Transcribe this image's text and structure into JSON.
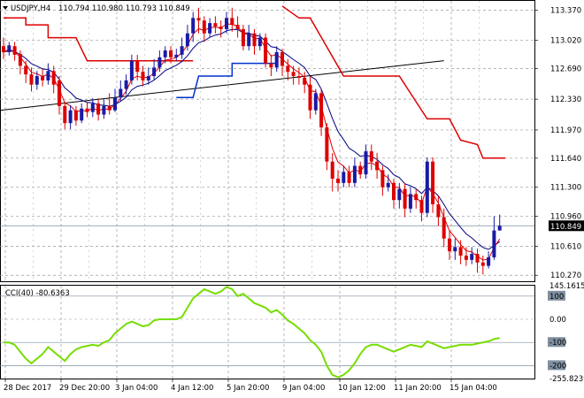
{
  "header": {
    "symbol": "USDJPY,H4",
    "ohlc": "110.794 110.980 110.793 110.849"
  },
  "indicator": {
    "label": "CCI(40) -80.6363",
    "value": -80.6363
  },
  "price_axis": {
    "labels": [
      "113.370",
      "113.020",
      "112.690",
      "112.330",
      "111.970",
      "111.640",
      "111.300",
      "110.960",
      "110.610",
      "110.270"
    ],
    "current": "110.849"
  },
  "cci_axis": {
    "labels": [
      "145.1615",
      "100",
      "0.00",
      "-100",
      "-200",
      "-255.8239"
    ],
    "boxed": [
      "100",
      "-100",
      "-200"
    ]
  },
  "time_axis": {
    "labels": [
      "28 Dec 2017",
      "29 Dec 20:00",
      "3 Jan 04:00",
      "4 Jan 12:00",
      "5 Jan 20:00",
      "9 Jan 04:00",
      "10 Jan 12:00",
      "11 Jan 20:00",
      "15 Jan 04:00"
    ]
  },
  "colors": {
    "bull": "#1a1aa6",
    "bear": "#dd0000",
    "fast_ma": "#dd0000",
    "slow_ma": "#000080",
    "stop_bear": "#dd0000",
    "stop_bull": "#0033cc",
    "trend": "#000000",
    "cci": "#77dd00",
    "grid": "#9a9a9a"
  },
  "chart_data": {
    "type": "candlestick",
    "price_range": [
      110.2,
      113.48
    ],
    "cci_range": [
      -255.8239,
      145.1615
    ],
    "candles": [
      [
        112.95,
        112.88,
        113.05,
        112.8
      ],
      [
        112.88,
        112.96,
        113.0,
        112.84
      ],
      [
        112.95,
        112.85,
        113.0,
        112.78
      ],
      [
        112.86,
        112.72,
        112.9,
        112.62
      ],
      [
        112.72,
        112.62,
        112.78,
        112.52
      ],
      [
        112.62,
        112.5,
        112.7,
        112.42
      ],
      [
        112.5,
        112.6,
        112.66,
        112.44
      ],
      [
        112.6,
        112.55,
        112.68,
        112.48
      ],
      [
        112.55,
        112.66,
        112.75,
        112.5
      ],
      [
        112.66,
        112.5,
        112.72,
        112.4
      ],
      [
        112.55,
        112.25,
        112.6,
        112.15
      ],
      [
        112.25,
        112.05,
        112.3,
        111.98
      ],
      [
        112.05,
        112.2,
        112.26,
        111.98
      ],
      [
        112.2,
        112.08,
        112.25,
        112.02
      ],
      [
        112.08,
        112.22,
        112.28,
        112.05
      ],
      [
        112.22,
        112.18,
        112.3,
        112.12
      ],
      [
        112.18,
        112.28,
        112.34,
        112.12
      ],
      [
        112.28,
        112.15,
        112.34,
        112.08
      ],
      [
        112.15,
        112.25,
        112.33,
        112.1
      ],
      [
        112.25,
        112.2,
        112.4,
        112.15
      ],
      [
        112.2,
        112.35,
        112.45,
        112.18
      ],
      [
        112.35,
        112.45,
        112.55,
        112.3
      ],
      [
        112.45,
        112.55,
        112.62,
        112.38
      ],
      [
        112.55,
        112.78,
        112.85,
        112.5
      ],
      [
        112.78,
        112.65,
        112.85,
        112.55
      ],
      [
        112.65,
        112.55,
        112.72,
        112.48
      ],
      [
        112.55,
        112.6,
        112.7,
        112.5
      ],
      [
        112.6,
        112.7,
        112.8,
        112.55
      ],
      [
        112.7,
        112.82,
        112.9,
        112.65
      ],
      [
        112.82,
        112.9,
        112.95,
        112.75
      ],
      [
        112.9,
        112.82,
        112.95,
        112.75
      ],
      [
        112.82,
        112.85,
        112.92,
        112.78
      ],
      [
        112.85,
        112.95,
        113.05,
        112.8
      ],
      [
        112.95,
        113.1,
        113.2,
        112.9
      ],
      [
        113.1,
        113.28,
        113.35,
        113.0
      ],
      [
        113.28,
        113.25,
        113.4,
        113.1
      ],
      [
        113.25,
        113.1,
        113.3,
        113.0
      ],
      [
        113.1,
        113.22,
        113.28,
        113.05
      ],
      [
        113.22,
        113.18,
        113.3,
        113.1
      ],
      [
        113.18,
        113.15,
        113.25,
        113.05
      ],
      [
        113.15,
        113.28,
        113.35,
        113.1
      ],
      [
        113.28,
        113.2,
        113.4,
        113.12
      ],
      [
        113.2,
        113.15,
        113.3,
        113.05
      ],
      [
        113.15,
        112.95,
        113.2,
        112.9
      ],
      [
        112.95,
        113.1,
        113.2,
        112.9
      ],
      [
        113.1,
        112.95,
        113.15,
        112.85
      ],
      [
        112.95,
        113.05,
        113.1,
        112.9
      ],
      [
        113.05,
        112.75,
        113.1,
        112.7
      ],
      [
        112.75,
        112.7,
        112.85,
        112.6
      ],
      [
        112.7,
        112.88,
        112.95,
        112.65
      ],
      [
        112.88,
        112.72,
        112.92,
        112.6
      ],
      [
        112.72,
        112.65,
        112.8,
        112.55
      ],
      [
        112.65,
        112.6,
        112.72,
        112.5
      ],
      [
        112.6,
        112.58,
        112.7,
        112.5
      ],
      [
        112.58,
        112.5,
        112.65,
        112.4
      ],
      [
        112.5,
        112.2,
        112.6,
        112.1
      ],
      [
        112.2,
        112.4,
        112.45,
        112.15
      ],
      [
        112.4,
        112.0,
        112.45,
        111.9
      ],
      [
        112.0,
        111.6,
        112.05,
        111.5
      ],
      [
        111.6,
        111.4,
        111.7,
        111.25
      ],
      [
        111.4,
        111.35,
        111.5,
        111.25
      ],
      [
        111.35,
        111.48,
        111.55,
        111.3
      ],
      [
        111.48,
        111.35,
        111.55,
        111.3
      ],
      [
        111.35,
        111.55,
        111.65,
        111.3
      ],
      [
        111.55,
        111.45,
        111.6,
        111.4
      ],
      [
        111.45,
        111.72,
        111.8,
        111.4
      ],
      [
        111.72,
        111.6,
        111.8,
        111.5
      ],
      [
        111.6,
        111.5,
        111.7,
        111.4
      ],
      [
        111.5,
        111.3,
        111.55,
        111.2
      ],
      [
        111.3,
        111.35,
        111.45,
        111.25
      ],
      [
        111.35,
        111.15,
        111.4,
        111.05
      ],
      [
        111.15,
        111.28,
        111.35,
        111.05
      ],
      [
        111.28,
        111.05,
        111.35,
        110.95
      ],
      [
        111.05,
        111.22,
        111.3,
        111.0
      ],
      [
        111.22,
        111.15,
        111.28,
        111.05
      ],
      [
        111.15,
        111.0,
        111.2,
        110.9
      ],
      [
        111.0,
        111.6,
        111.65,
        110.95
      ],
      [
        111.6,
        111.1,
        111.65,
        111.0
      ],
      [
        111.1,
        110.95,
        111.2,
        110.85
      ],
      [
        110.95,
        110.7,
        111.05,
        110.6
      ],
      [
        110.7,
        110.55,
        110.8,
        110.45
      ],
      [
        110.55,
        110.6,
        110.7,
        110.45
      ],
      [
        110.6,
        110.5,
        110.68,
        110.4
      ],
      [
        110.5,
        110.45,
        110.6,
        110.38
      ],
      [
        110.45,
        110.52,
        110.6,
        110.4
      ],
      [
        110.52,
        110.42,
        110.58,
        110.3
      ],
      [
        110.42,
        110.38,
        110.5,
        110.28
      ],
      [
        110.38,
        110.48,
        110.55,
        110.35
      ],
      [
        110.48,
        110.794,
        110.96,
        110.45
      ],
      [
        110.794,
        110.849,
        110.98,
        110.793
      ]
    ],
    "cci": [
      -100,
      -100,
      -110,
      -140,
      -170,
      -190,
      -170,
      -150,
      -120,
      -140,
      -160,
      -180,
      -150,
      -130,
      -120,
      -115,
      -110,
      -115,
      -100,
      -90,
      -60,
      -40,
      -20,
      -10,
      -20,
      -30,
      -25,
      -5,
      0,
      0,
      0,
      0,
      10,
      50,
      90,
      110,
      130,
      120,
      110,
      120,
      140,
      130,
      100,
      110,
      90,
      70,
      60,
      50,
      30,
      40,
      20,
      -5,
      -20,
      -40,
      -60,
      -90,
      -110,
      -140,
      -200,
      -240,
      -250,
      -240,
      -220,
      -190,
      -150,
      -120,
      -110,
      -110,
      -120,
      -130,
      -140,
      -130,
      -120,
      -110,
      -115,
      -120,
      -95,
      -105,
      -115,
      -125,
      -120,
      -115,
      -110,
      -110,
      -110,
      -105,
      -100,
      -95,
      -85,
      -80.6363
    ]
  }
}
